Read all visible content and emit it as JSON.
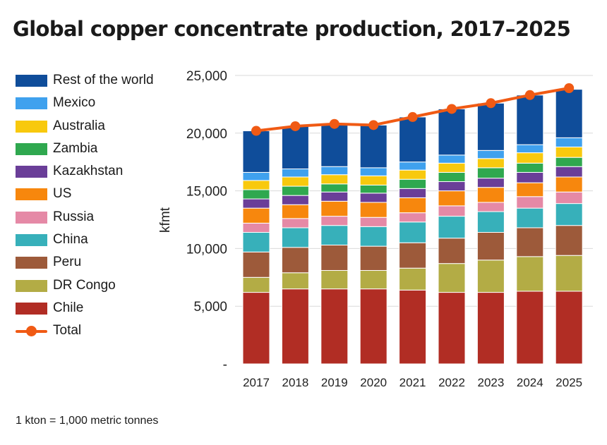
{
  "chart_data": {
    "type": "bar",
    "stacked": true,
    "title": "Global copper concentrate production, 2017–2025",
    "ylabel": "kfmt",
    "xlabel": "",
    "ylim": [
      0,
      25000
    ],
    "yticks": [
      0,
      5000,
      10000,
      15000,
      20000,
      25000
    ],
    "ytick_labels": [
      "-",
      "5,000",
      "10,000",
      "15,000",
      "20,000",
      "25,000"
    ],
    "grid": true,
    "legend_position": "left",
    "categories": [
      "2017",
      "2018",
      "2019",
      "2020",
      "2021",
      "2022",
      "2023",
      "2024",
      "2025"
    ],
    "series": [
      {
        "name": "Chile",
        "color": "#b12d24",
        "values": [
          6200,
          6500,
          6500,
          6500,
          6400,
          6200,
          6200,
          6300,
          6300
        ]
      },
      {
        "name": "DR Congo",
        "color": "#b3ac45",
        "values": [
          1300,
          1400,
          1600,
          1600,
          1900,
          2500,
          2800,
          3000,
          3100
        ]
      },
      {
        "name": "Peru",
        "color": "#9d5a3a",
        "values": [
          2200,
          2200,
          2200,
          2100,
          2200,
          2200,
          2400,
          2500,
          2600
        ]
      },
      {
        "name": "China",
        "color": "#37b0ba",
        "values": [
          1700,
          1700,
          1700,
          1700,
          1800,
          1900,
          1800,
          1700,
          1900
        ]
      },
      {
        "name": "Russia",
        "color": "#e589a6",
        "values": [
          800,
          800,
          800,
          800,
          800,
          900,
          800,
          1000,
          1000
        ]
      },
      {
        "name": "US",
        "color": "#f7870d",
        "values": [
          1300,
          1200,
          1300,
          1300,
          1300,
          1300,
          1300,
          1200,
          1300
        ]
      },
      {
        "name": "Kazakhstan",
        "color": "#6a3e98",
        "values": [
          800,
          800,
          800,
          800,
          800,
          800,
          800,
          900,
          900
        ]
      },
      {
        "name": "Zambia",
        "color": "#2fa84f",
        "values": [
          800,
          800,
          700,
          700,
          800,
          800,
          900,
          800,
          800
        ]
      },
      {
        "name": "Australia",
        "color": "#f8c90e",
        "values": [
          800,
          800,
          800,
          800,
          800,
          800,
          800,
          900,
          900
        ]
      },
      {
        "name": "Mexico",
        "color": "#3fa1ee",
        "values": [
          700,
          700,
          700,
          700,
          700,
          700,
          700,
          700,
          800
        ]
      },
      {
        "name": "Rest of the world",
        "color": "#0f4d9a",
        "values": [
          3600,
          3700,
          3700,
          3700,
          3900,
          4000,
          4100,
          4300,
          4200
        ]
      }
    ],
    "total": {
      "name": "Total",
      "color": "#f05a14",
      "values": [
        20200,
        20600,
        20800,
        20700,
        21400,
        22100,
        22600,
        23300,
        23900
      ]
    },
    "footnote": "1 kton = 1,000 metric tonnes"
  }
}
